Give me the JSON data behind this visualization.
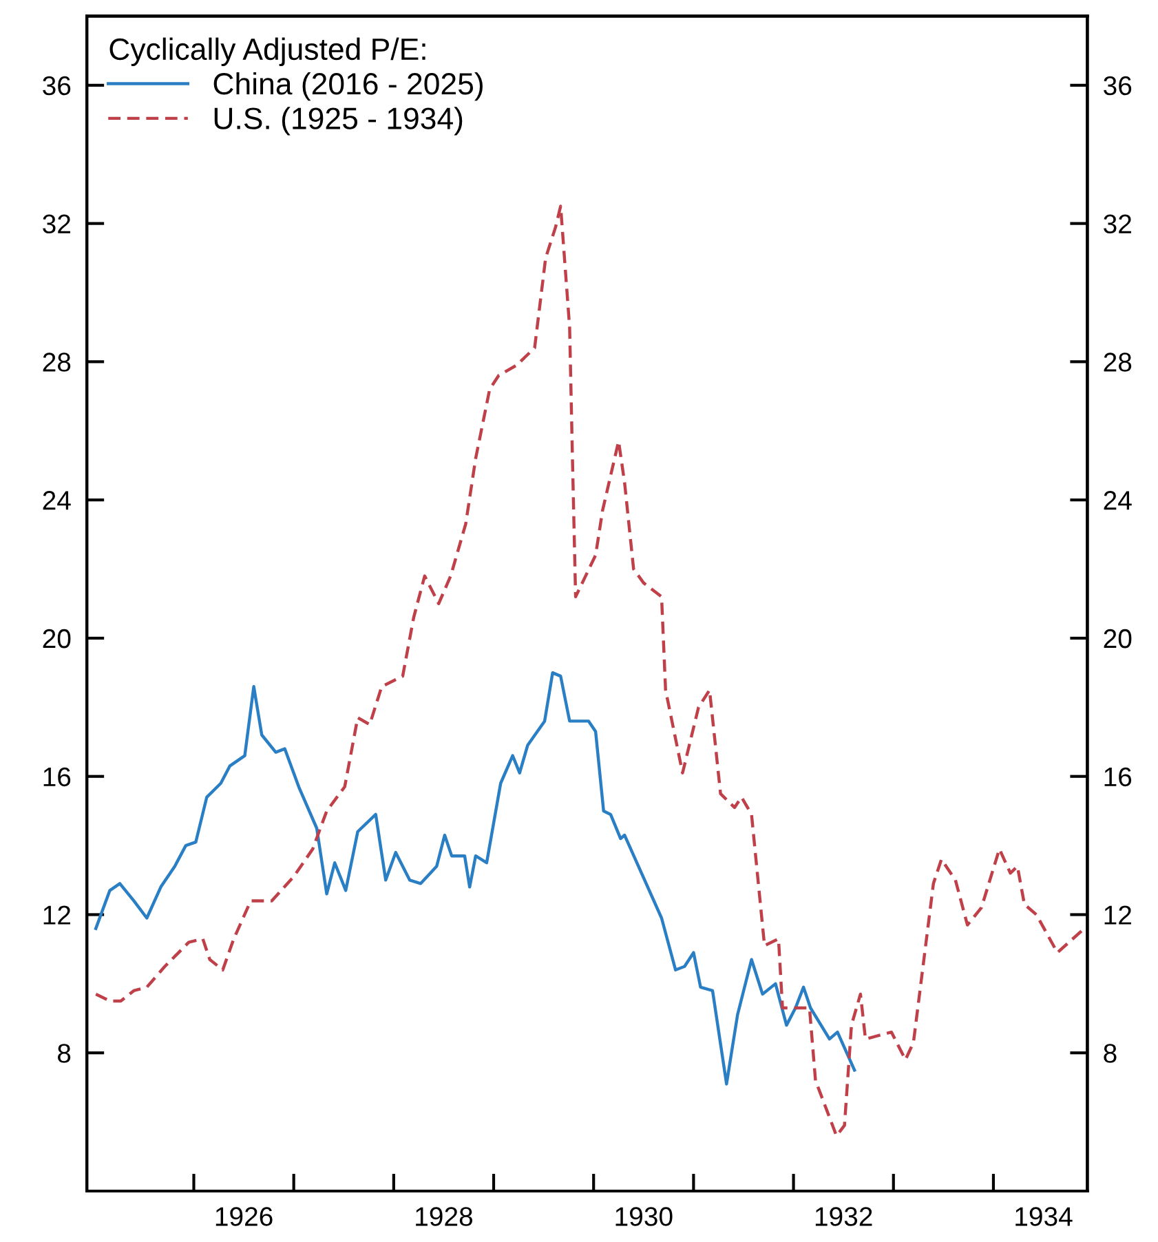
{
  "chart_data": {
    "type": "line",
    "legend_title": "Cyclically Adjusted P/E:",
    "legend": "top left",
    "grid": false,
    "marker": "none",
    "xlim": [
      1924.43,
      1934.44
    ],
    "ylim": [
      4,
      38
    ],
    "y2lim": [
      4,
      38
    ],
    "yticks": [
      8,
      12,
      16,
      20,
      24,
      28,
      32,
      36
    ],
    "y2ticks": [
      8,
      12,
      16,
      20,
      24,
      28,
      32,
      36
    ],
    "xticks": [
      {
        "value": 1925.5,
        "label": null
      },
      1926,
      {
        "value": 1926.5,
        "label": null
      },
      {
        "value": 1927.5,
        "label": null
      },
      1928,
      {
        "value": 1928.5,
        "label": null
      },
      {
        "value": 1929.5,
        "label": null
      },
      1930,
      {
        "value": 1930.5,
        "label": null
      },
      {
        "value": 1931.5,
        "label": null
      },
      1932,
      {
        "value": 1932.5,
        "label": null
      },
      {
        "value": 1933.5,
        "label": null
      },
      1934
    ],
    "series": [
      {
        "name": "China (2016 - 2025)",
        "color": "#2a7fc4",
        "line_style": "solid",
        "x": [
          1924.52,
          1924.66,
          1924.76,
          1924.9,
          1925.03,
          1925.17,
          1925.31,
          1925.42,
          1925.52,
          1925.63,
          1925.77,
          1925.86,
          1926.01,
          1926.1,
          1926.18,
          1926.32,
          1926.41,
          1926.55,
          1926.73,
          1926.83,
          1926.91,
          1927.02,
          1927.14,
          1927.32,
          1927.42,
          1927.52,
          1927.66,
          1927.77,
          1927.93,
          1928.01,
          1928.08,
          1928.21,
          1928.26,
          1928.32,
          1928.43,
          1928.57,
          1928.69,
          1928.76,
          1928.84,
          1929.01,
          1929.09,
          1929.17,
          1929.26,
          1929.45,
          1929.52,
          1929.6,
          1929.67,
          1929.77,
          1929.81,
          1930.18,
          1930.32,
          1930.41,
          1930.5,
          1930.57,
          1930.69,
          1930.83,
          1930.94,
          1931.08,
          1931.19,
          1931.32,
          1931.43,
          1931.52,
          1931.6,
          1931.67,
          1931.86,
          1931.94,
          1932.11
        ],
        "values": [
          11.6,
          12.7,
          12.9,
          12.4,
          11.9,
          12.8,
          13.4,
          14.0,
          14.1,
          15.4,
          15.8,
          16.3,
          16.6,
          18.6,
          17.2,
          16.7,
          16.8,
          15.7,
          14.5,
          12.6,
          13.5,
          12.7,
          14.4,
          14.9,
          13.0,
          13.8,
          13.0,
          12.9,
          13.4,
          14.3,
          13.7,
          13.7,
          12.8,
          13.7,
          13.5,
          15.8,
          16.6,
          16.1,
          16.9,
          17.6,
          19.0,
          18.9,
          17.6,
          17.6,
          17.3,
          15.0,
          14.9,
          14.2,
          14.3,
          11.9,
          10.4,
          10.5,
          10.9,
          9.9,
          9.8,
          7.1,
          9.1,
          10.7,
          9.7,
          10.0,
          8.8,
          9.3,
          9.9,
          9.3,
          8.4,
          8.6,
          7.5
        ]
      },
      {
        "name": "U.S. (1925 - 1934)",
        "color": "#c0404a",
        "line_style": "dashed",
        "x": [
          1924.52,
          1924.66,
          1924.77,
          1924.9,
          1925.03,
          1925.21,
          1925.45,
          1925.59,
          1925.66,
          1925.79,
          1925.9,
          1926.07,
          1926.28,
          1926.5,
          1926.69,
          1926.83,
          1927.01,
          1927.14,
          1927.26,
          1927.38,
          1927.59,
          1927.7,
          1927.81,
          1927.95,
          1928.07,
          1928.22,
          1928.32,
          1928.46,
          1928.55,
          1928.73,
          1928.91,
          1929.02,
          1929.12,
          1929.17,
          1929.26,
          1929.29,
          1929.32,
          1929.52,
          1929.59,
          1929.75,
          1929.81,
          1929.9,
          1930.0,
          1930.18,
          1930.22,
          1930.39,
          1930.55,
          1930.66,
          1930.77,
          1930.91,
          1930.98,
          1931.08,
          1931.21,
          1931.35,
          1931.39,
          1931.66,
          1931.72,
          1931.93,
          1932.01,
          1932.08,
          1932.17,
          1932.22,
          1932.48,
          1932.62,
          1932.7,
          1932.9,
          1932.98,
          1933.12,
          1933.24,
          1933.38,
          1933.56,
          1933.67,
          1933.74,
          1933.81,
          1933.93,
          1934.14,
          1934.41
        ],
        "values": [
          9.7,
          9.5,
          9.5,
          9.8,
          9.9,
          10.5,
          11.2,
          11.3,
          10.7,
          10.4,
          11.3,
          12.4,
          12.4,
          13.1,
          13.9,
          15.0,
          15.7,
          17.7,
          17.5,
          18.6,
          18.9,
          20.6,
          21.8,
          21.0,
          21.8,
          23.3,
          25.2,
          27.2,
          27.6,
          27.9,
          28.4,
          31.0,
          31.9,
          32.5,
          29.0,
          25.0,
          21.2,
          22.4,
          23.7,
          25.7,
          24.5,
          22.0,
          21.6,
          21.2,
          18.5,
          16.1,
          18.0,
          18.5,
          15.5,
          15.1,
          15.4,
          14.9,
          11.1,
          11.3,
          9.3,
          9.3,
          7.2,
          5.6,
          5.9,
          8.8,
          9.7,
          8.4,
          8.6,
          7.8,
          8.3,
          12.9,
          13.6,
          13.0,
          11.7,
          12.2,
          13.9,
          13.2,
          13.4,
          12.3,
          12.0,
          10.9,
          11.6
        ]
      }
    ]
  }
}
